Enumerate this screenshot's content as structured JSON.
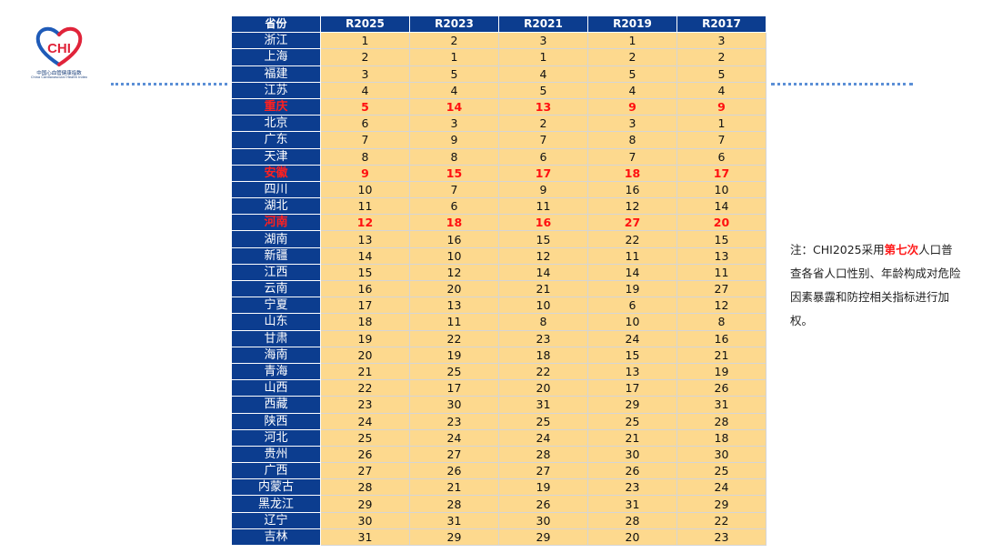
{
  "logo": {
    "text": "CHI",
    "name_zh": "中国心血管健康指数",
    "name_en": "China Cardiovascular Health Index"
  },
  "table": {
    "headers": [
      "省份",
      "R2025",
      "R2023",
      "R2021",
      "R2019",
      "R2017"
    ],
    "rows": [
      {
        "province": "浙江",
        "values": [
          1,
          2,
          3,
          1,
          3
        ],
        "highlight": false
      },
      {
        "province": "上海",
        "values": [
          2,
          1,
          1,
          2,
          2
        ],
        "highlight": false
      },
      {
        "province": "福建",
        "values": [
          3,
          5,
          4,
          5,
          5
        ],
        "highlight": false
      },
      {
        "province": "江苏",
        "values": [
          4,
          4,
          5,
          4,
          4
        ],
        "highlight": false
      },
      {
        "province": "重庆",
        "values": [
          5,
          14,
          13,
          9,
          9
        ],
        "highlight": true
      },
      {
        "province": "北京",
        "values": [
          6,
          3,
          2,
          3,
          1
        ],
        "highlight": false
      },
      {
        "province": "广东",
        "values": [
          7,
          9,
          7,
          8,
          7
        ],
        "highlight": false
      },
      {
        "province": "天津",
        "values": [
          8,
          8,
          6,
          7,
          6
        ],
        "highlight": false
      },
      {
        "province": "安徽",
        "values": [
          9,
          15,
          17,
          18,
          17
        ],
        "highlight": true
      },
      {
        "province": "四川",
        "values": [
          10,
          7,
          9,
          16,
          10
        ],
        "highlight": false
      },
      {
        "province": "湖北",
        "values": [
          11,
          6,
          11,
          12,
          14
        ],
        "highlight": false
      },
      {
        "province": "河南",
        "values": [
          12,
          18,
          16,
          27,
          20
        ],
        "highlight": true
      },
      {
        "province": "湖南",
        "values": [
          13,
          16,
          15,
          22,
          15
        ],
        "highlight": false
      },
      {
        "province": "新疆",
        "values": [
          14,
          10,
          12,
          11,
          13
        ],
        "highlight": false
      },
      {
        "province": "江西",
        "values": [
          15,
          12,
          14,
          14,
          11
        ],
        "highlight": false
      },
      {
        "province": "云南",
        "values": [
          16,
          20,
          21,
          19,
          27
        ],
        "highlight": false
      },
      {
        "province": "宁夏",
        "values": [
          17,
          13,
          10,
          6,
          12
        ],
        "highlight": false
      },
      {
        "province": "山东",
        "values": [
          18,
          11,
          8,
          10,
          8
        ],
        "highlight": false
      },
      {
        "province": "甘肃",
        "values": [
          19,
          22,
          23,
          24,
          16
        ],
        "highlight": false
      },
      {
        "province": "海南",
        "values": [
          20,
          19,
          18,
          15,
          21
        ],
        "highlight": false
      },
      {
        "province": "青海",
        "values": [
          21,
          25,
          22,
          13,
          19
        ],
        "highlight": false
      },
      {
        "province": "山西",
        "values": [
          22,
          17,
          20,
          17,
          26
        ],
        "highlight": false
      },
      {
        "province": "西藏",
        "values": [
          23,
          30,
          31,
          29,
          31
        ],
        "highlight": false
      },
      {
        "province": "陕西",
        "values": [
          24,
          23,
          25,
          25,
          28
        ],
        "highlight": false
      },
      {
        "province": "河北",
        "values": [
          25,
          24,
          24,
          21,
          18
        ],
        "highlight": false
      },
      {
        "province": "贵州",
        "values": [
          26,
          27,
          28,
          30,
          30
        ],
        "highlight": false
      },
      {
        "province": "广西",
        "values": [
          27,
          26,
          27,
          26,
          25
        ],
        "highlight": false
      },
      {
        "province": "内蒙古",
        "values": [
          28,
          21,
          19,
          23,
          24
        ],
        "highlight": false
      },
      {
        "province": "黑龙江",
        "values": [
          29,
          28,
          26,
          31,
          29
        ],
        "highlight": false
      },
      {
        "province": "辽宁",
        "values": [
          30,
          31,
          30,
          28,
          22
        ],
        "highlight": false
      },
      {
        "province": "吉林",
        "values": [
          31,
          29,
          29,
          20,
          23
        ],
        "highlight": false
      }
    ]
  },
  "note": {
    "prefix": "注：CHI2025采用",
    "emphasis": "第七次",
    "suffix": "人口普查各省人口性别、年龄构成对危险因素暴露和防控相关指标进行加权。"
  },
  "colors": {
    "header_bg": "#0c3d8f",
    "cell_bg": "#fdd98e",
    "highlight": "#ff1a1a",
    "dots": "#5b8fd6"
  }
}
